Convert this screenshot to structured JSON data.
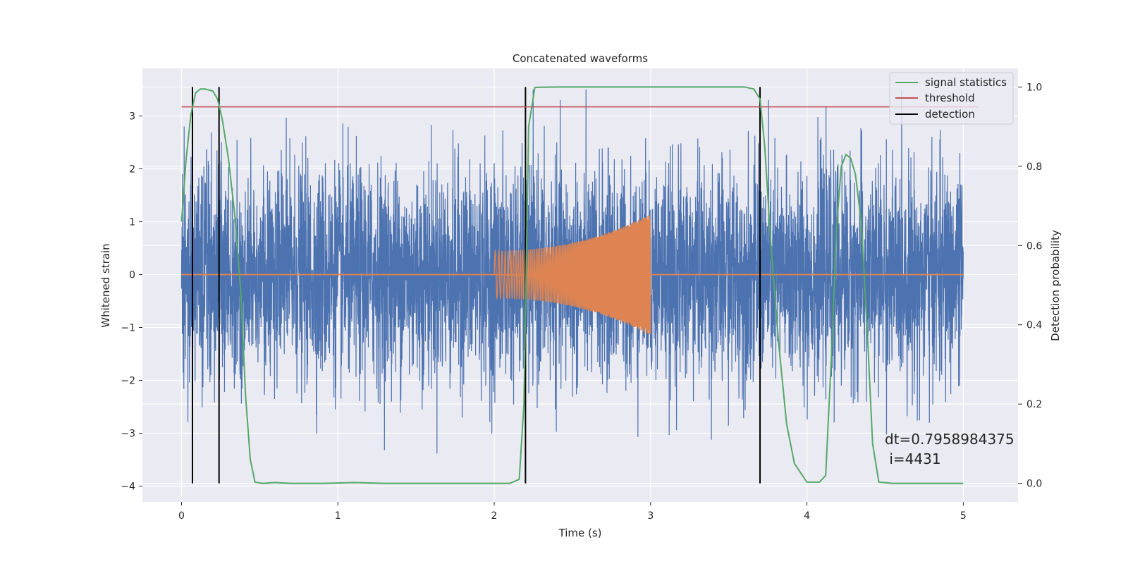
{
  "chart_data": {
    "type": "line",
    "title": "Concatenated waveforms",
    "xlabel": "Time (s)",
    "ylabel": "Whitened strain",
    "y2label": "Detection probability",
    "xlim": [
      -0.25,
      5.35
    ],
    "ylim": [
      -4.3,
      3.9
    ],
    "y2lim": [
      -0.047,
      1.047
    ],
    "x_ticks": [
      0,
      1,
      2,
      3,
      4,
      5
    ],
    "y_ticks": [
      -4,
      -3,
      -2,
      -1,
      0,
      1,
      2,
      3
    ],
    "y2_ticks": [
      0.0,
      0.2,
      0.4,
      0.6,
      0.8,
      1.0
    ],
    "x_tick_labels": [
      "0",
      "1",
      "2",
      "3",
      "4",
      "5"
    ],
    "y_tick_labels": [
      "−4",
      "−3",
      "−2",
      "−1",
      "0",
      "1",
      "2",
      "3"
    ],
    "y2_tick_labels": [
      "0.0",
      "0.2",
      "0.4",
      "0.6",
      "0.8",
      "1.0"
    ],
    "grid": true,
    "legend_position": "top-right",
    "noise": {
      "axis": "left",
      "color": "#4c72b0",
      "x_range": [
        0,
        5
      ],
      "note_amplitude_typical": 1.0,
      "peak_max": 3.5,
      "peak_min": -3.9
    },
    "injected_signal": {
      "axis": "left",
      "color": "#dd8452",
      "x_range": [
        2.0,
        3.0
      ],
      "amplitude_start": 0.45,
      "amplitude_end": 1.15,
      "baseline_x_range": [
        0,
        5
      ],
      "baseline_value": 0
    },
    "series": [
      {
        "name": "signal statistics",
        "axis": "right",
        "color": "#55a868",
        "x": [
          0.0,
          0.03,
          0.06,
          0.09,
          0.12,
          0.15,
          0.2,
          0.23,
          0.26,
          0.3,
          0.34,
          0.38,
          0.41,
          0.44,
          0.47,
          0.52,
          0.6,
          0.7,
          0.9,
          1.1,
          1.3,
          1.6,
          1.9,
          2.1,
          2.16,
          2.19,
          2.22,
          2.26,
          2.4,
          3.0,
          3.6,
          3.66,
          3.7,
          3.73,
          3.77,
          3.82,
          3.87,
          3.92,
          4.0,
          4.08,
          4.12,
          4.16,
          4.19,
          4.22,
          4.25,
          4.28,
          4.31,
          4.35,
          4.39,
          4.42,
          4.46,
          4.55,
          4.7,
          5.0
        ],
        "y": [
          0.66,
          0.82,
          0.93,
          0.985,
          0.995,
          0.995,
          0.99,
          0.97,
          0.92,
          0.82,
          0.68,
          0.48,
          0.22,
          0.06,
          0.003,
          0.0,
          0.002,
          0.0,
          0.0,
          0.002,
          0.0,
          0.0,
          0.0,
          0.0,
          0.01,
          0.2,
          0.9,
          0.999,
          1.0,
          1.0,
          1.0,
          0.995,
          0.97,
          0.85,
          0.6,
          0.35,
          0.15,
          0.05,
          0.003,
          0.003,
          0.02,
          0.35,
          0.65,
          0.8,
          0.83,
          0.82,
          0.78,
          0.65,
          0.35,
          0.1,
          0.003,
          0.0,
          0.0,
          0.0
        ]
      },
      {
        "name": "threshold",
        "axis": "right",
        "color": "#c44e52",
        "x": [
          0,
          5.1
        ],
        "y": [
          0.95,
          0.95
        ]
      },
      {
        "name": "detection",
        "axis": "right",
        "color": "#000000",
        "x": [
          0.07,
          0.24,
          2.2,
          3.7
        ]
      }
    ],
    "legend": [
      {
        "label": "signal statistics",
        "color": "#55a868"
      },
      {
        "label": "threshold",
        "color": "#c44e52"
      },
      {
        "label": "detection",
        "color": "#000000"
      }
    ],
    "annotation": {
      "line1": "dt=0.7958984375",
      "line2": " i=4431"
    }
  }
}
